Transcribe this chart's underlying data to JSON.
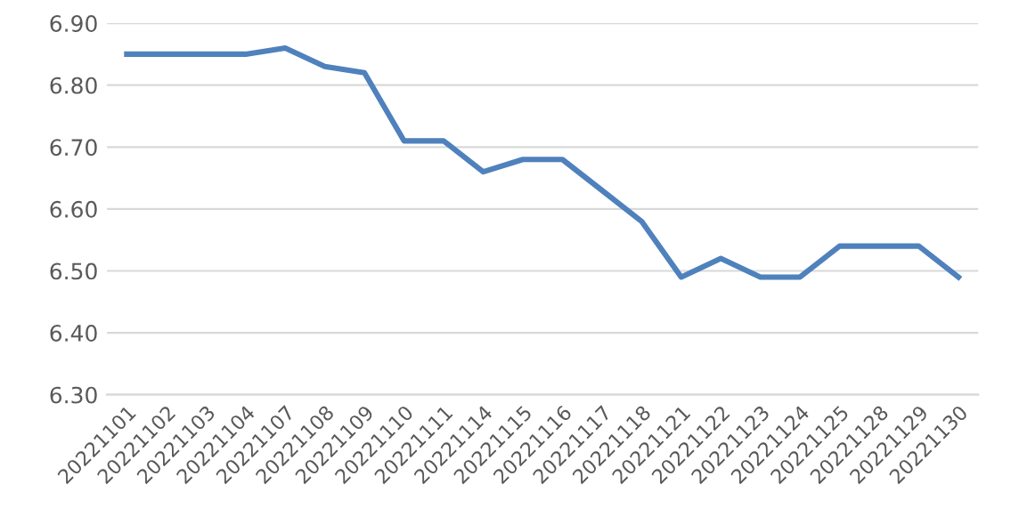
{
  "chart_data": {
    "type": "line",
    "categories": [
      "20221101",
      "20221102",
      "20221103",
      "20221104",
      "20221107",
      "20221108",
      "20221109",
      "20221110",
      "20221111",
      "20221114",
      "20221115",
      "20221116",
      "20221117",
      "20221118",
      "20221121",
      "20221122",
      "20221123",
      "20221124",
      "20221125",
      "20221128",
      "20221129",
      "20221130"
    ],
    "series": [
      {
        "color": "#4f81bd",
        "values": [
          6.85,
          6.85,
          6.85,
          6.85,
          6.86,
          6.83,
          6.82,
          6.71,
          6.71,
          6.66,
          6.68,
          6.68,
          6.63,
          6.58,
          6.49,
          6.52,
          6.49,
          6.49,
          6.54,
          6.54,
          6.54,
          6.49
        ]
      }
    ],
    "ylim": [
      6.3,
      6.9
    ],
    "yticks": [
      {
        "value": 6.3,
        "label": "6.30"
      },
      {
        "value": 6.4,
        "label": "6.40"
      },
      {
        "value": 6.5,
        "label": "6.50"
      },
      {
        "value": 6.6,
        "label": "6.60"
      },
      {
        "value": 6.7,
        "label": "6.70"
      },
      {
        "value": 6.8,
        "label": "6.80"
      },
      {
        "value": 6.9,
        "label": "6.90"
      }
    ],
    "grid": "y",
    "legend": false,
    "marker": "none",
    "line_style": "solid"
  }
}
